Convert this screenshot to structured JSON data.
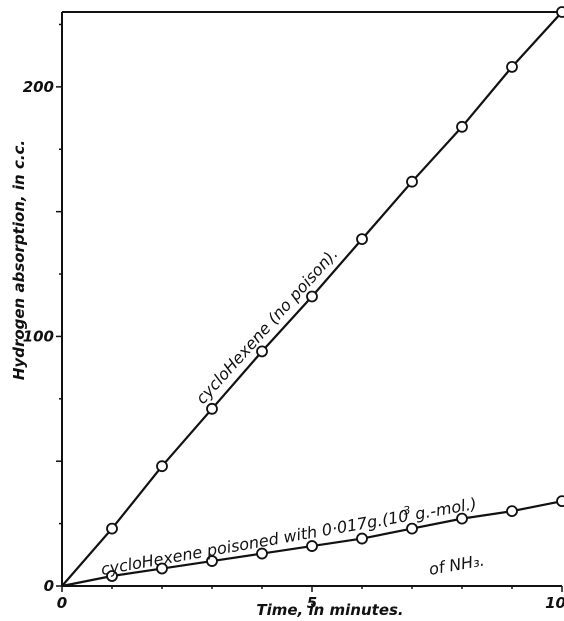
{
  "chart_data": {
    "type": "line",
    "xlabel": "Time, in minutes.",
    "ylabel": "Hydrogen absorption, in c.c.",
    "xlim": [
      0,
      10
    ],
    "ylim": [
      0,
      230
    ],
    "x_ticks": [
      0,
      5,
      10
    ],
    "x_tick_labels": [
      "0",
      "5",
      "10"
    ],
    "y_ticks": [
      0,
      100,
      200
    ],
    "y_tick_labels": [
      "0",
      "100",
      "200"
    ],
    "grid": false,
    "series": [
      {
        "x": [
          0,
          1,
          2,
          3,
          4,
          5,
          6,
          7,
          8,
          9,
          10
        ],
        "y": [
          0,
          23,
          48,
          71,
          94,
          116,
          139,
          162,
          184,
          208,
          230
        ]
      },
      {
        "x": [
          0,
          1,
          2,
          3,
          4,
          5,
          6,
          7,
          8,
          9,
          10
        ],
        "y": [
          0,
          4,
          7,
          10,
          13,
          16,
          19,
          23,
          27,
          30,
          34
        ]
      }
    ],
    "annotations": {
      "line1": "cycloHexene (no poison).",
      "line2a": "cycloHexene poisoned with 0·017g.(10",
      "line2sup": "-3",
      "line2b": "g.-mol.)",
      "line2c": "of NH₃."
    }
  }
}
